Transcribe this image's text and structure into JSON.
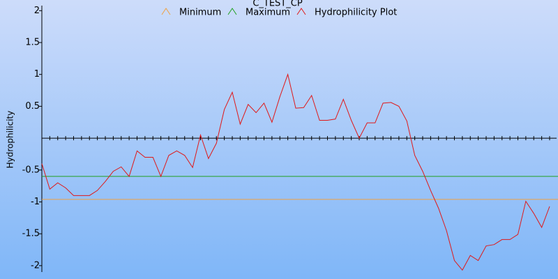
{
  "chart_data": {
    "type": "line",
    "title": "C_TEST_CP",
    "y_label": "Hydrophilicity",
    "ylim": [
      -2.1,
      2.08
    ],
    "yticks": [
      2,
      1.5,
      1,
      0.5,
      -0.5,
      -1,
      -1.5,
      -2
    ],
    "series": [
      {
        "name": "Minimum",
        "color": "#f0a040",
        "value": -0.96
      },
      {
        "name": "Maximum",
        "color": "#20a020",
        "value": -0.6
      },
      {
        "name": "Hydrophilicity Plot",
        "color": "#e01818",
        "values": [
          -0.4,
          -0.8,
          -0.7,
          -0.78,
          -0.9,
          -0.9,
          -0.9,
          -0.82,
          -0.68,
          -0.52,
          -0.45,
          -0.6,
          -0.2,
          -0.3,
          -0.3,
          -0.6,
          -0.27,
          -0.2,
          -0.27,
          -0.46,
          0.05,
          -0.32,
          -0.08,
          0.45,
          0.72,
          0.22,
          0.53,
          0.4,
          0.55,
          0.25,
          0.65,
          1.0,
          0.47,
          0.48,
          0.67,
          0.28,
          0.28,
          0.3,
          0.61,
          0.28,
          0.0,
          0.24,
          0.24,
          0.55,
          0.56,
          0.5,
          0.27,
          -0.27,
          -0.52,
          -0.82,
          -1.1,
          -1.45,
          -1.92,
          -2.07,
          -1.84,
          -1.92,
          -1.69,
          -1.67,
          -1.59,
          -1.59,
          -1.51,
          -0.99,
          -1.18,
          -1.4,
          -1.07
        ]
      }
    ]
  }
}
